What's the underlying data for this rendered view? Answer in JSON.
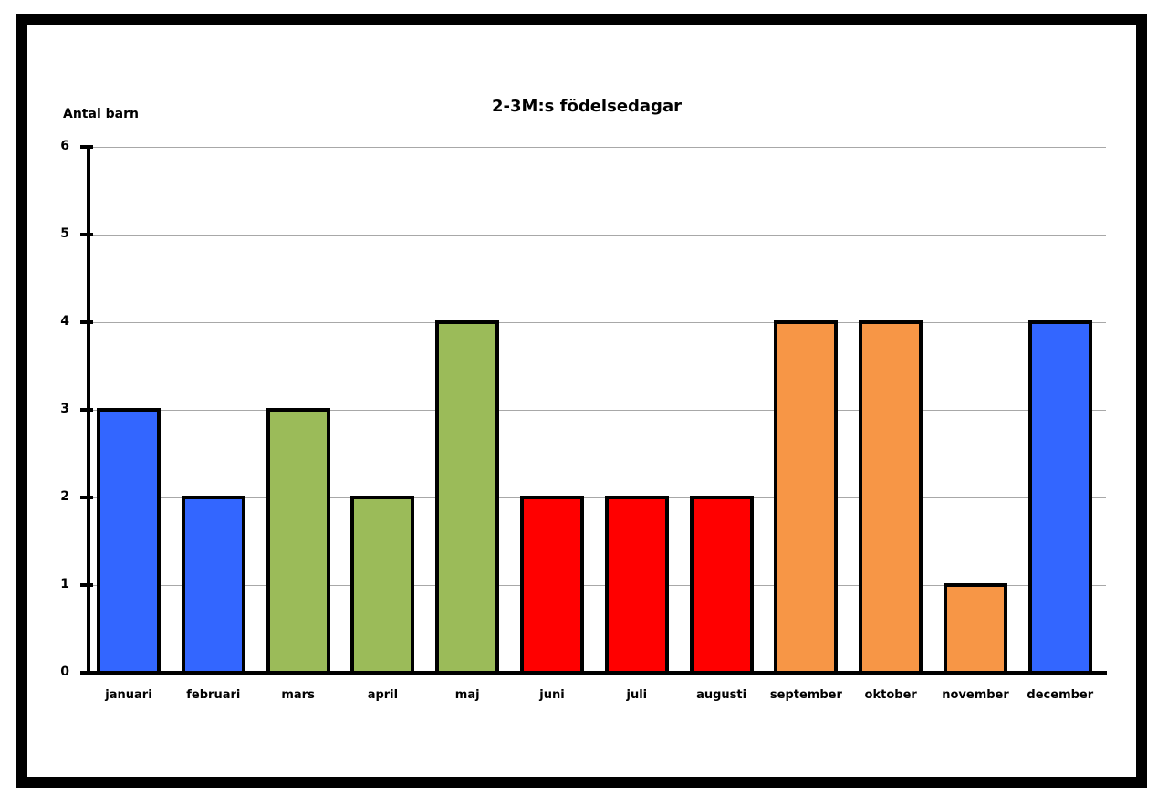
{
  "chart_data": {
    "type": "bar",
    "title": "2-3M:s födelsedagar",
    "xlabel": "",
    "ylabel": "Antal barn",
    "ylim": [
      0,
      6
    ],
    "yticks": [
      "0",
      "1",
      "2",
      "3",
      "4",
      "5",
      "6"
    ],
    "grid": true,
    "legend": null,
    "categories": [
      "januari",
      "februari",
      "mars",
      "april",
      "maj",
      "juni",
      "juli",
      "augusti",
      "september",
      "oktober",
      "november",
      "december"
    ],
    "values": [
      3,
      2,
      3,
      2,
      4,
      2,
      2,
      2,
      4,
      4,
      1,
      4
    ],
    "bar_colors": [
      "#3366ff",
      "#3366ff",
      "#9bbb59",
      "#9bbb59",
      "#9bbb59",
      "#ff0000",
      "#ff0000",
      "#ff0000",
      "#f79646",
      "#f79646",
      "#f79646",
      "#3366ff"
    ]
  }
}
